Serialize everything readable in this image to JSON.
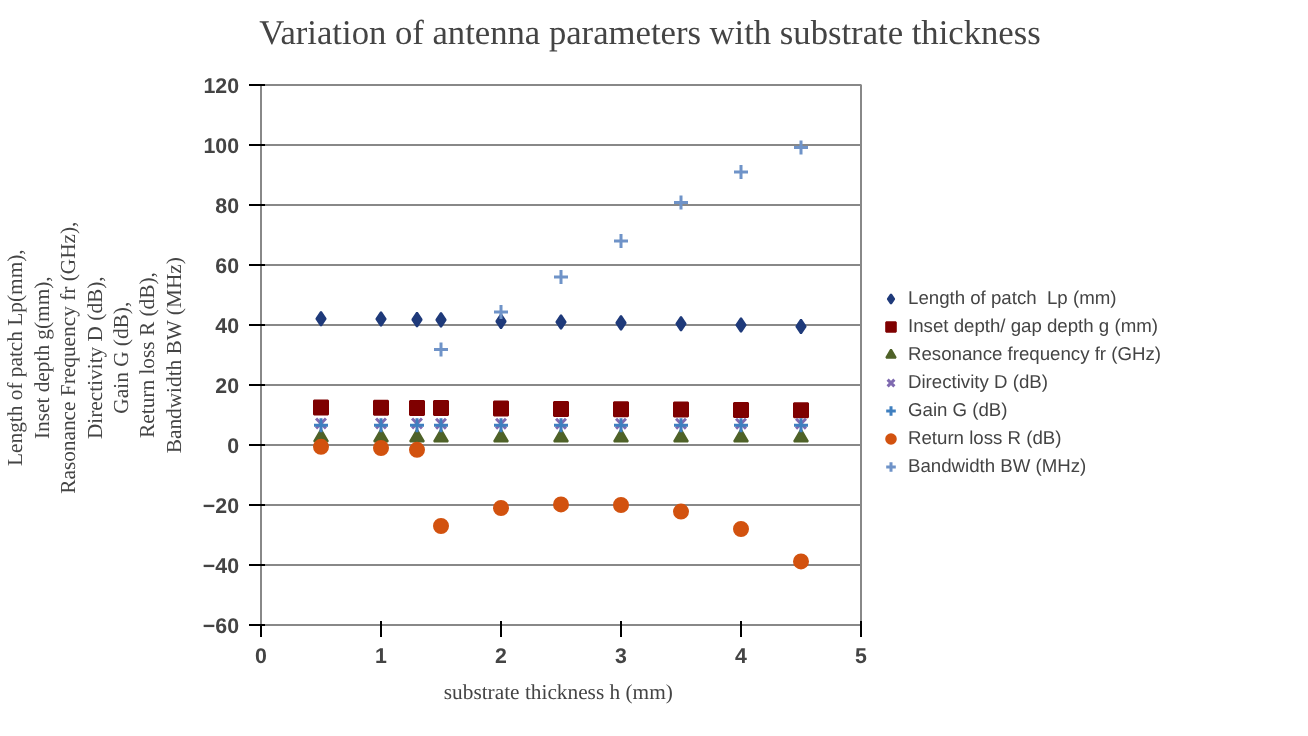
{
  "chart_data": {
    "type": "scatter",
    "title": "Variation of antenna parameters with substrate thickness",
    "xlabel": "substrate thickness  h (mm)",
    "ylabel": "Length of patch  Lp(mm),\nInset depth  g(mm),\nRasonance Frequency  fr (GHz),\nDirectivity  D (dB),\nGain  G (dB),\nReturn loss R (dB),\nBandwidth BW (MHz)",
    "x": [
      0.5,
      1,
      1.3,
      1.5,
      2,
      2.5,
      3,
      3.5,
      4,
      4.5
    ],
    "xlim": [
      0,
      5
    ],
    "xticks": [
      0,
      1,
      2,
      3,
      4,
      5
    ],
    "ylim": [
      -60,
      120
    ],
    "yticks": [
      -60,
      -40,
      -20,
      0,
      20,
      40,
      60,
      80,
      100,
      120
    ],
    "grid": "y",
    "legend": "right",
    "series": [
      {
        "name": "Length of patch  Lp (mm)",
        "color": "#1f3a7a",
        "marker": "diamond",
        "values": [
          42.1,
          42,
          41.8,
          41.7,
          41.2,
          41,
          40.7,
          40.4,
          40,
          39.5
        ]
      },
      {
        "name": "Inset depth/ gap depth g (mm)",
        "color": "#7f0000",
        "marker": "square",
        "values": [
          12.5,
          12.4,
          12.3,
          12.3,
          12.2,
          12,
          11.9,
          11.8,
          11.7,
          11.6
        ]
      },
      {
        "name": "Resonance frequency fr (GHz)",
        "color": "#4f6228",
        "marker": "triangle",
        "values": [
          2.5,
          2.5,
          2.5,
          2.5,
          2.5,
          2.5,
          2.5,
          2.5,
          2.5,
          2.5
        ]
      },
      {
        "name": "Directivity D (dB)",
        "color": "#7f6ab0",
        "marker": "x",
        "values": [
          7.2,
          7.2,
          7.2,
          7.1,
          7.1,
          7.1,
          7.1,
          7.1,
          7.1,
          7.1
        ]
      },
      {
        "name": "Gain G (dB)",
        "color": "#3f7fbf",
        "marker": "cross",
        "values": [
          6.6,
          6.6,
          6.6,
          6.6,
          6.6,
          6.6,
          6.6,
          6.6,
          6.6,
          6.6
        ]
      },
      {
        "name": "Return loss R (dB)",
        "color": "#d2520f",
        "marker": "circle",
        "values": [
          -0.6,
          -1,
          -1.6,
          -27,
          -21,
          -19.8,
          -20,
          -22.2,
          -28,
          -38.8
        ]
      },
      {
        "name": "Bandwidth BW (MHz)",
        "color": "#6f93c8",
        "marker": "cross",
        "values": [
          null,
          null,
          null,
          31.8,
          44.3,
          56,
          68,
          80.8,
          91,
          99.2
        ]
      }
    ]
  }
}
